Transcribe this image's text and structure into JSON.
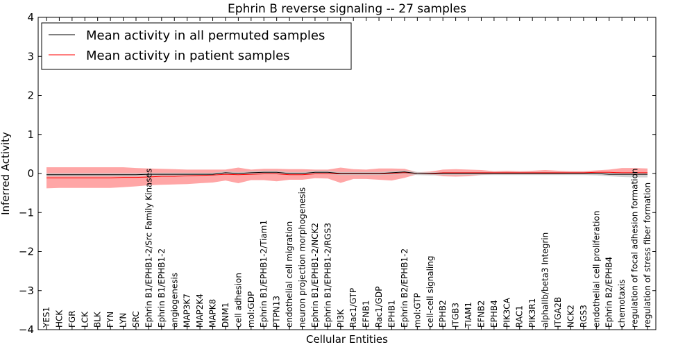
{
  "chart_data": {
    "type": "line",
    "title": "Ephrin B reverse signaling -- 27 samples",
    "xlabel": "Cellular Entities",
    "ylabel": "Inferred Activity",
    "ylim": [
      -4,
      4
    ],
    "yticks": [
      4,
      3,
      2,
      1,
      0,
      -1,
      -2,
      -3,
      -4
    ],
    "ytick_labels": [
      "4",
      "3",
      "2",
      "1",
      "0",
      "−1",
      "−2",
      "−3",
      "−4"
    ],
    "legend": {
      "placement": "top-left",
      "entries": [
        {
          "label": "Mean activity in all permuted samples",
          "color": "#000000"
        },
        {
          "label": "Mean activity in patient samples",
          "color": "#ff0000"
        }
      ]
    },
    "colors": {
      "patient": "#ff0000",
      "patient_band": "#ff8080",
      "permuted": "#000000",
      "permuted_band": "#c8c8c8"
    },
    "categories": [
      "YES1",
      "HCK",
      "FGR",
      "LCK",
      "BLK",
      "FYN",
      "LYN",
      "SRC",
      "Ephrin B1/EPHB1-2/Src Family Kinases",
      "Ephrin B1/EPHB1-2",
      "angiogenesis",
      "MAP3K7",
      "MAP2K4",
      "MAPK8",
      "DNM1",
      "cell adhesion",
      "mol:GDP",
      "Ephrin B1/EPHB1-2/Tiam1",
      "PTPN13",
      "endothelial cell migration",
      "neuron projection morphogenesis",
      "Ephrin B1/EPHB1-2/NCK2",
      "Ephrin B1/EPHB1-2/RGS3",
      "PI3K",
      "Rac1/GTP",
      "EFNB1",
      "Rac1/GDP",
      "EPHB1",
      "Ephrin B2/EPHB1-2",
      "mol:GTP",
      "cell-cell signaling",
      "EPHB2",
      "ITGB3",
      "TIAM1",
      "EFNB2",
      "EPHB4",
      "PIK3CA",
      "RAC1",
      "PIK3R1",
      "alphaIIb/beta3 Integrin",
      "ITGA2B",
      "NCK2",
      "RGS3",
      "endothelial cell proliferation",
      "Ephrin B2/EPHB4",
      "chemotaxis",
      "regulation of focal adhesion formation",
      "regulation of stress fiber formation"
    ],
    "series": [
      {
        "name": "Mean activity in patient samples",
        "values": [
          -0.11,
          -0.11,
          -0.11,
          -0.11,
          -0.11,
          -0.11,
          -0.1,
          -0.1,
          -0.09,
          -0.07,
          -0.07,
          -0.06,
          -0.05,
          -0.04,
          -0.02,
          -0.03,
          -0.02,
          -0.01,
          -0.01,
          -0.03,
          -0.03,
          -0.01,
          -0.01,
          -0.01,
          -0.01,
          -0.01,
          -0.01,
          0.0,
          0.02,
          0.0,
          0.0,
          0.02,
          0.02,
          0.02,
          0.02,
          0.02,
          0.02,
          0.02,
          0.02,
          0.02,
          0.02,
          0.02,
          0.02,
          0.03,
          0.03,
          0.02,
          0.02,
          0.02
        ],
        "lower": [
          -0.38,
          -0.37,
          -0.37,
          -0.37,
          -0.37,
          -0.37,
          -0.35,
          -0.33,
          -0.3,
          -0.29,
          -0.28,
          -0.27,
          -0.25,
          -0.23,
          -0.18,
          -0.25,
          -0.17,
          -0.17,
          -0.2,
          -0.16,
          -0.16,
          -0.12,
          -0.13,
          -0.24,
          -0.14,
          -0.14,
          -0.16,
          -0.18,
          -0.11,
          -0.02,
          -0.03,
          -0.07,
          -0.08,
          -0.07,
          -0.04,
          -0.02,
          -0.02,
          -0.02,
          -0.02,
          -0.02,
          -0.02,
          -0.01,
          -0.01,
          -0.02,
          -0.02,
          -0.02,
          -0.02,
          -0.02
        ],
        "upper": [
          0.16,
          0.16,
          0.16,
          0.16,
          0.16,
          0.16,
          0.16,
          0.14,
          0.13,
          0.12,
          0.11,
          0.1,
          0.1,
          0.1,
          0.1,
          0.15,
          0.1,
          0.12,
          0.12,
          0.11,
          0.11,
          0.1,
          0.1,
          0.15,
          0.11,
          0.1,
          0.13,
          0.13,
          0.12,
          0.03,
          0.05,
          0.1,
          0.11,
          0.1,
          0.09,
          0.06,
          0.07,
          0.06,
          0.07,
          0.09,
          0.07,
          0.06,
          0.06,
          0.08,
          0.1,
          0.14,
          0.14,
          0.13
        ]
      },
      {
        "name": "Mean activity in all permuted samples",
        "values": [
          -0.03,
          -0.03,
          -0.03,
          -0.03,
          -0.03,
          -0.03,
          -0.03,
          -0.03,
          -0.02,
          -0.02,
          -0.02,
          -0.02,
          -0.02,
          -0.02,
          0.02,
          0.0,
          0.02,
          0.03,
          0.03,
          0.0,
          0.0,
          0.03,
          0.03,
          0.0,
          0.0,
          0.0,
          0.0,
          0.02,
          0.04,
          0.0,
          -0.01,
          0.0,
          0.0,
          0.0,
          0.0,
          0.0,
          0.0,
          0.0,
          0.0,
          0.0,
          0.0,
          0.0,
          0.0,
          0.0,
          -0.02,
          -0.02,
          -0.02,
          -0.02
        ],
        "lower": [
          -0.07,
          -0.07,
          -0.07,
          -0.07,
          -0.07,
          -0.07,
          -0.07,
          -0.07,
          -0.06,
          -0.06,
          -0.06,
          -0.06,
          -0.06,
          -0.06,
          -0.03,
          -0.04,
          -0.03,
          -0.02,
          -0.02,
          -0.04,
          -0.04,
          -0.02,
          -0.02,
          -0.04,
          -0.04,
          -0.04,
          -0.04,
          -0.03,
          -0.02,
          -0.04,
          -0.05,
          -0.04,
          -0.04,
          -0.04,
          -0.04,
          -0.04,
          -0.04,
          -0.04,
          -0.04,
          -0.04,
          -0.04,
          -0.04,
          -0.04,
          -0.05,
          -0.07,
          -0.09,
          -0.1,
          -0.1
        ],
        "upper": [
          0.01,
          0.01,
          0.01,
          0.01,
          0.01,
          0.01,
          0.01,
          0.01,
          0.02,
          0.02,
          0.02,
          0.02,
          0.02,
          0.02,
          0.06,
          0.04,
          0.06,
          0.07,
          0.07,
          0.04,
          0.04,
          0.07,
          0.07,
          0.04,
          0.04,
          0.04,
          0.04,
          0.06,
          0.08,
          0.04,
          0.03,
          0.04,
          0.04,
          0.04,
          0.04,
          0.04,
          0.04,
          0.04,
          0.04,
          0.04,
          0.04,
          0.04,
          0.04,
          0.04,
          0.02,
          0.02,
          0.02,
          0.02
        ]
      }
    ]
  }
}
